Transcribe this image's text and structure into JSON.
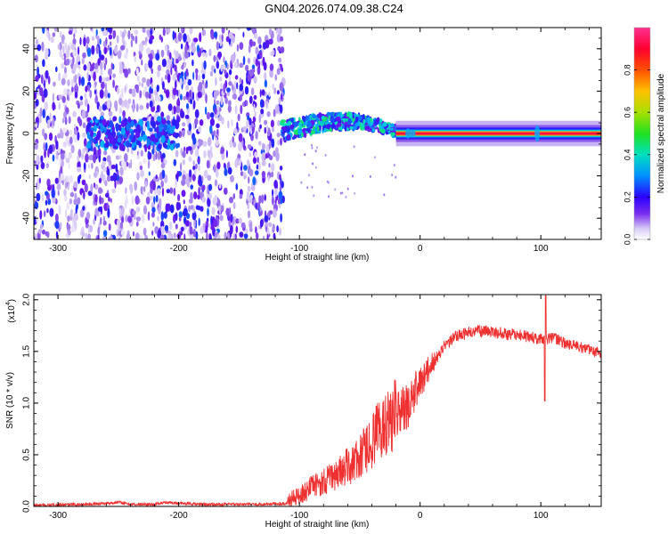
{
  "title": "GN04.2026.074.09.38.C24",
  "chart_data": [
    {
      "type": "heatmap",
      "name": "spectrogram",
      "xlabel": "Height of straight line (km)",
      "ylabel": "Frequency (Hz)",
      "xlim": [
        -320,
        150
      ],
      "ylim": [
        -50,
        50
      ],
      "xticks": [
        -300,
        -200,
        -100,
        0,
        100
      ],
      "xtick_labels": [
        "-300",
        "-200",
        "-100",
        "0",
        "100"
      ],
      "yticks": [
        40,
        20,
        0,
        -20,
        -40
      ],
      "ytick_labels": [
        "40",
        "20",
        "0",
        "-20",
        "-40"
      ],
      "colorbar": {
        "label": "Normalized spectral amplitude",
        "range": [
          0,
          1
        ],
        "ticks": [
          0.0,
          0.2,
          0.4,
          0.6,
          0.8
        ],
        "tick_labels": [
          "0.0",
          "0.2",
          "0.4",
          "0.6",
          "0.8"
        ],
        "colors": [
          "#ffffff",
          "#9a7fe8",
          "#6a10ee",
          "#2020ff",
          "#00b4ff",
          "#00e2b6",
          "#20e020",
          "#b8e000",
          "#ffc000",
          "#ff4000",
          "#ff0030",
          "#ff40a0"
        ]
      },
      "features": [
        {
          "description": "broadband noise",
          "x_range": [
            -320,
            -113
          ],
          "freq_range": [
            -50,
            50
          ],
          "amplitude": 0.12
        },
        {
          "description": "weak carrier",
          "x_range": [
            -275,
            -200
          ],
          "freq_center": 0,
          "amplitude": 0.3
        },
        {
          "description": "wandering carrier",
          "x_range": [
            -115,
            -20
          ],
          "freq_center_range": [
            0,
            8
          ],
          "amplitude": 0.45
        },
        {
          "description": "strong carrier",
          "x_range": [
            -20,
            150
          ],
          "freq_center": 0,
          "amplitude": 0.95
        }
      ]
    },
    {
      "type": "line",
      "name": "snr",
      "xlabel": "Height of straight line (km)",
      "ylabel": "SNR (10 * v/v)",
      "scale_label": "(x10",
      "scale_exponent": "4",
      "xlim": [
        -320,
        150
      ],
      "ylim": [
        0,
        2.05
      ],
      "xticks": [
        -300,
        -200,
        -100,
        0,
        100
      ],
      "xtick_labels": [
        "-300",
        "-200",
        "-100",
        "0",
        "100"
      ],
      "yticks": [
        0,
        0.5,
        1.0,
        1.5,
        2.0
      ],
      "ytick_labels": [
        "0.0",
        "0.5",
        "1.0",
        "1.5",
        "2.0"
      ],
      "color": "#ee3030",
      "series": [
        {
          "name": "SNR",
          "x": [
            -320,
            -280,
            -260,
            -250,
            -240,
            -220,
            -210,
            -200,
            -180,
            -150,
            -130,
            -110,
            -100,
            -90,
            -80,
            -70,
            -60,
            -50,
            -40,
            -30,
            -20,
            -10,
            0,
            10,
            20,
            30,
            40,
            50,
            60,
            70,
            80,
            90,
            100,
            104,
            110,
            120,
            130,
            140,
            150
          ],
          "values": [
            0.01,
            0.02,
            0.03,
            0.04,
            0.02,
            0.02,
            0.04,
            0.03,
            0.02,
            0.02,
            0.02,
            0.03,
            0.08,
            0.15,
            0.2,
            0.26,
            0.33,
            0.4,
            0.55,
            0.7,
            0.8,
            0.9,
            1.15,
            1.35,
            1.55,
            1.65,
            1.68,
            1.7,
            1.69,
            1.67,
            1.66,
            1.64,
            1.62,
            1.62,
            1.63,
            1.58,
            1.55,
            1.52,
            1.48
          ]
        }
      ],
      "annotations": [
        {
          "x": 104,
          "peak": 2.04,
          "dip": 1.02
        }
      ]
    }
  ]
}
